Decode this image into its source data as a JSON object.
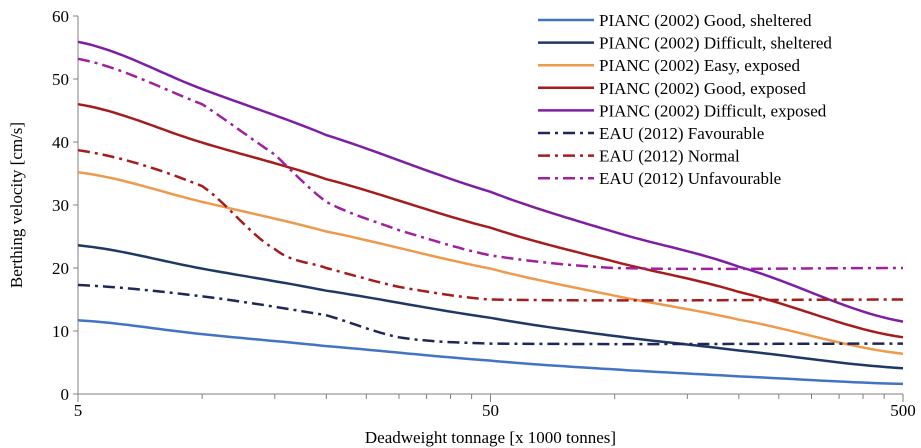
{
  "chart_data": {
    "type": "line",
    "xscale": "log",
    "xlim": [
      5,
      500
    ],
    "ylim": [
      0,
      60
    ],
    "x_ticks": [
      5,
      50,
      500
    ],
    "y_ticks": [
      0,
      10,
      20,
      30,
      40,
      50,
      60
    ],
    "xlabel": "Deadweight tonnage [x 1000 tonnes]",
    "ylabel": "Berthing velocity [cm/s]",
    "legend_position": "top-right",
    "grid": false,
    "series": [
      {
        "name": "PIANC (2002) Good, sheltered",
        "color": "#4472C4",
        "dash": "solid",
        "x": [
          5,
          10,
          20,
          50,
          100,
          200,
          500
        ],
        "y": [
          11.7,
          9.5,
          7.6,
          5.3,
          3.9,
          2.8,
          1.6
        ]
      },
      {
        "name": "PIANC (2002) Difficult, sheltered",
        "color": "#203864",
        "dash": "solid",
        "x": [
          5,
          10,
          20,
          50,
          100,
          200,
          500
        ],
        "y": [
          23.6,
          19.9,
          16.4,
          12.1,
          9.2,
          6.9,
          4.1
        ]
      },
      {
        "name": "PIANC (2002) Easy, exposed",
        "color": "#ED9A4D",
        "dash": "solid",
        "x": [
          5,
          10,
          20,
          50,
          100,
          200,
          500
        ],
        "y": [
          35.2,
          30.5,
          25.8,
          19.9,
          15.6,
          11.8,
          6.4
        ]
      },
      {
        "name": "PIANC (2002) Good, exposed",
        "color": "#A51C1C",
        "dash": "solid",
        "x": [
          5,
          10,
          20,
          50,
          100,
          200,
          500
        ],
        "y": [
          46,
          39.9,
          34.1,
          26.4,
          21,
          16.2,
          9
        ]
      },
      {
        "name": "PIANC (2002) Difficult, exposed",
        "color": "#7E1FA3",
        "dash": "solid",
        "x": [
          5,
          10,
          20,
          50,
          100,
          200,
          500
        ],
        "y": [
          55.9,
          48.4,
          41.1,
          32.1,
          25.7,
          20.2,
          11.5
        ]
      },
      {
        "name": "EAU (2012) Favourable",
        "color": "#1F2759",
        "dash": "dashdot",
        "x": [
          5,
          10,
          20,
          30,
          50,
          500
        ],
        "y": [
          17.3,
          15.5,
          12.5,
          9,
          8,
          8
        ]
      },
      {
        "name": "EAU (2012) Normal",
        "color": "#A51C1C",
        "dash": "dashdot",
        "x": [
          5,
          10,
          15,
          20,
          30,
          50,
          500
        ],
        "y": [
          38.7,
          33,
          23,
          20,
          17,
          15,
          15
        ]
      },
      {
        "name": "EAU (2012) Unfavourable",
        "color": "#A020A0",
        "dash": "dashdot",
        "x": [
          5,
          10,
          15,
          20,
          30,
          50,
          100,
          500
        ],
        "y": [
          53.2,
          46,
          38,
          30.5,
          26,
          22,
          20,
          20
        ]
      }
    ]
  }
}
